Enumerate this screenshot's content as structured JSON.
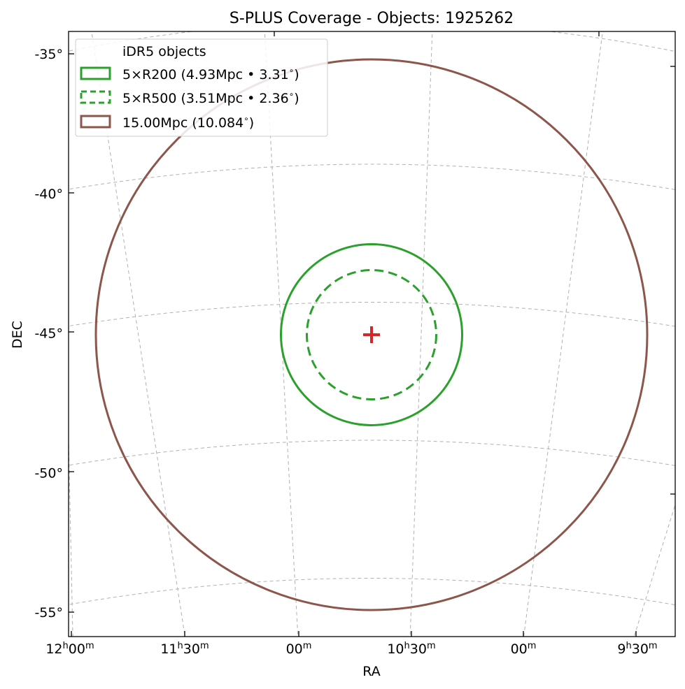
{
  "chart_data": {
    "type": "scatter",
    "title": "S-PLUS Coverage - Objects: 1925262",
    "xlabel": "RA",
    "ylabel": "DEC",
    "projection": "sky (RA/DEC)",
    "grid": true,
    "legend_position": "upper-left",
    "center": {
      "ra": "10h40m",
      "dec": -45.1
    },
    "xlim": [
      "12h00m",
      "9h25m"
    ],
    "ylim": [
      -56,
      -34.2
    ],
    "x_ticks": [
      {
        "h": "12",
        "m": "00"
      },
      {
        "h": "11",
        "m": "30"
      },
      {
        "h": "",
        "m": "00"
      },
      {
        "h": "10",
        "m": "30"
      },
      {
        "h": "",
        "m": "00"
      },
      {
        "h": "9",
        "m": "30"
      }
    ],
    "x_tick_unit": {
      "h": "h",
      "m": "m"
    },
    "y_ticks": [
      {
        "value": -35,
        "label": "-35°"
      },
      {
        "value": -40,
        "label": "-40°"
      },
      {
        "value": -45,
        "label": "-45°"
      },
      {
        "value": -50,
        "label": "-50°"
      },
      {
        "value": -55,
        "label": "-55°"
      }
    ],
    "series": [
      {
        "name": "iDR5 objects",
        "kind": "points",
        "count": 1925262,
        "color": "#1f77b4"
      },
      {
        "name": "5×R200 (4.93Mpc • 3.31$^\\circ$)",
        "kind": "circle",
        "radius_deg": 3.31,
        "radius_mpc": 4.93,
        "color": "#2ca02c",
        "style": "solid"
      },
      {
        "name": "5×R500 (3.51Mpc • 2.36$^\\circ$)",
        "kind": "circle",
        "radius_deg": 2.36,
        "radius_mpc": 3.51,
        "color": "#2ca02c",
        "style": "dashed"
      },
      {
        "name": "15.00Mpc (10.084$^\\circ$)",
        "kind": "circle",
        "radius_deg": 10.084,
        "radius_mpc": 15.0,
        "color": "#8c564b",
        "style": "solid"
      }
    ],
    "legend": [
      {
        "pre": "iDR5 objects",
        "deg": "",
        "post": ""
      },
      {
        "pre": "5×R200 (4.93Mpc • 3.31",
        "deg": "∘",
        "post": ")"
      },
      {
        "pre": "5×R500 (3.51Mpc • 2.36",
        "deg": "∘",
        "post": ")"
      },
      {
        "pre": "15.00Mpc (10.084",
        "deg": "∘",
        "post": ")"
      }
    ],
    "center_marker": {
      "symbol": "+",
      "color": "#d62728"
    }
  }
}
